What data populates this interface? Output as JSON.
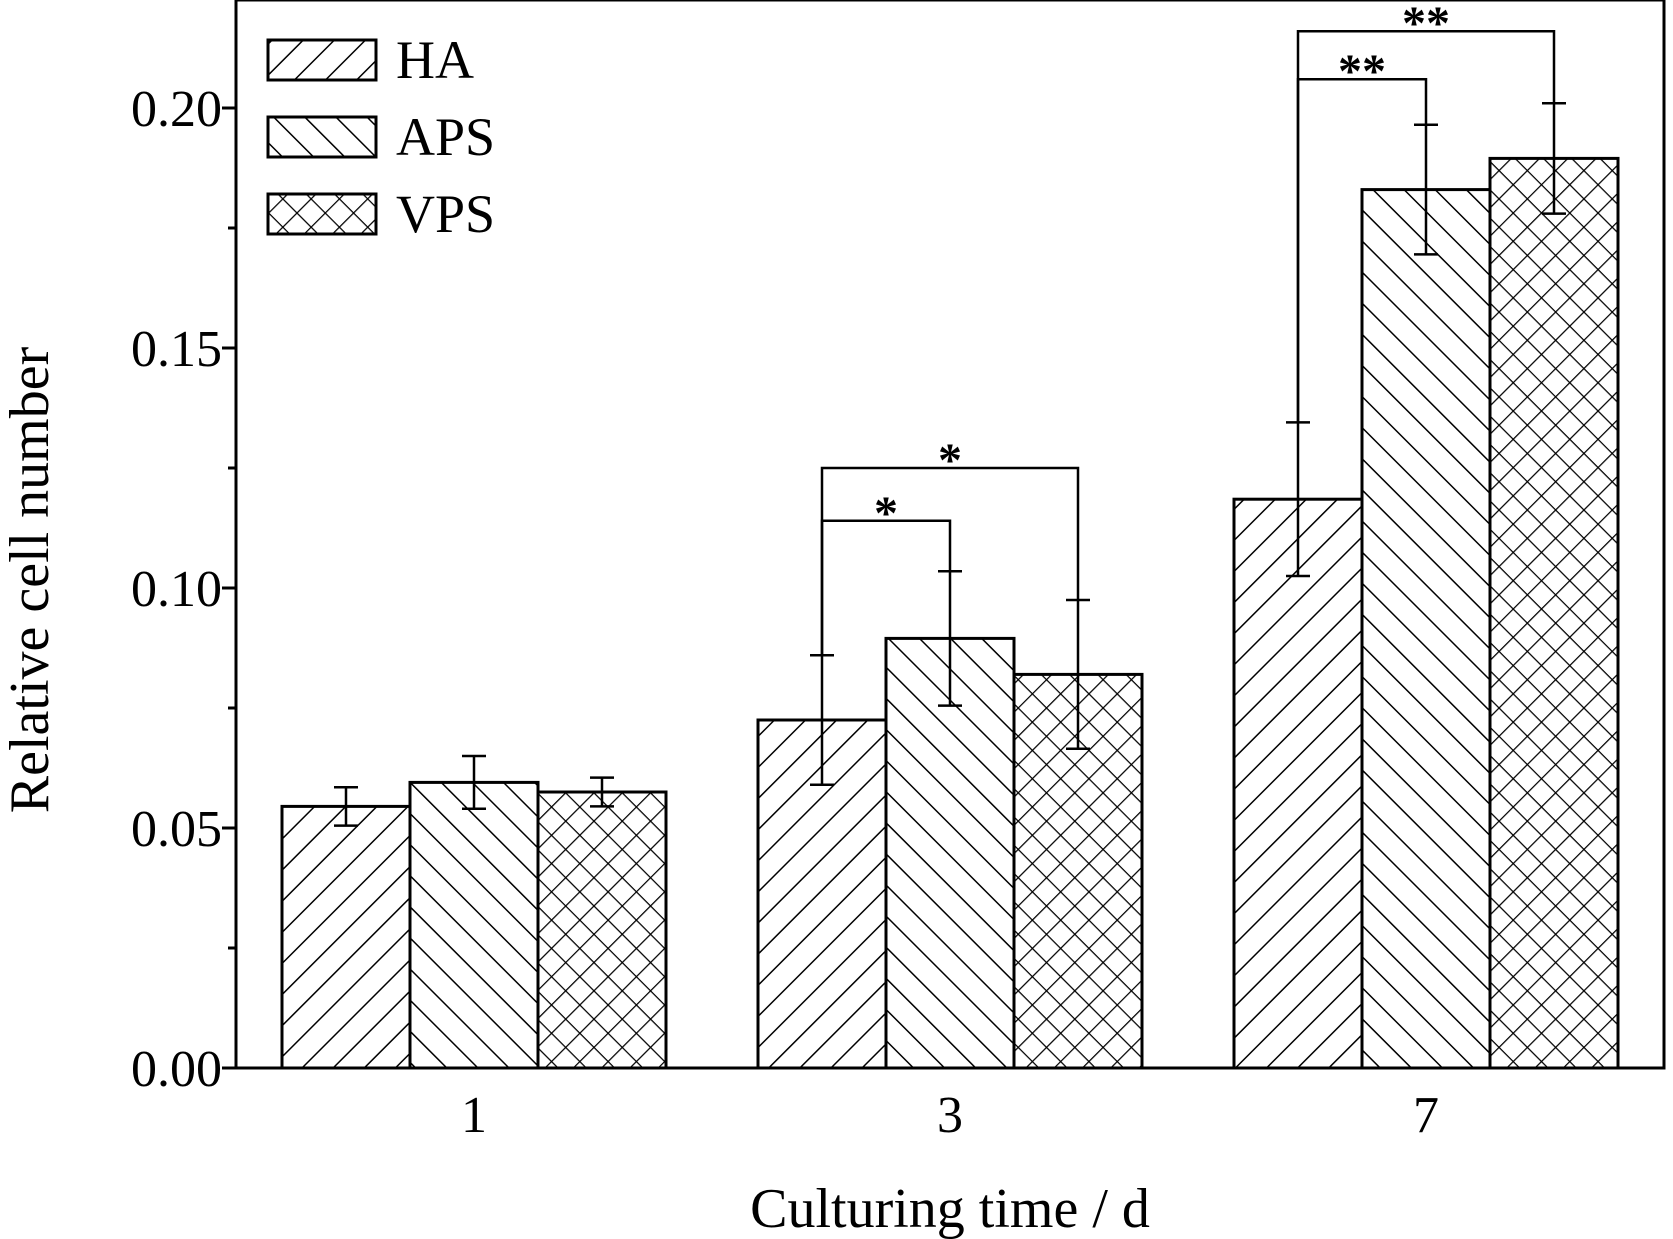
{
  "chart_data": {
    "type": "bar",
    "title": "",
    "xlabel": "Culturing time / d",
    "ylabel": "Relative cell number",
    "categories": [
      "1",
      "3",
      "7"
    ],
    "ylim": [
      0,
      0.2225
    ],
    "yticks": [
      "0.00",
      "0.05",
      "0.10",
      "0.15",
      "0.20"
    ],
    "legend_position": "top-left",
    "series": [
      {
        "name": "HA",
        "pattern": "diagonal-forward",
        "values": [
          0.0545,
          0.0725,
          0.1185
        ],
        "errors": [
          0.004,
          0.0135,
          0.016
        ]
      },
      {
        "name": "APS",
        "pattern": "diagonal-backward",
        "values": [
          0.0595,
          0.0895,
          0.183
        ],
        "errors": [
          0.0055,
          0.014,
          0.0135
        ]
      },
      {
        "name": "VPS",
        "pattern": "crosshatch",
        "values": [
          0.0575,
          0.082,
          0.1895
        ],
        "errors": [
          0.003,
          0.0155,
          0.0115
        ]
      }
    ],
    "significance": [
      {
        "category": "3",
        "from": "HA",
        "to": "APS",
        "level": 0.114,
        "label": "*"
      },
      {
        "category": "3",
        "from": "HA",
        "to": "VPS",
        "level": 0.125,
        "label": "*"
      },
      {
        "category": "7",
        "from": "HA",
        "to": "APS",
        "level": 0.206,
        "label": "**"
      },
      {
        "category": "7",
        "from": "HA",
        "to": "VPS",
        "level": 0.216,
        "label": "**"
      }
    ]
  }
}
